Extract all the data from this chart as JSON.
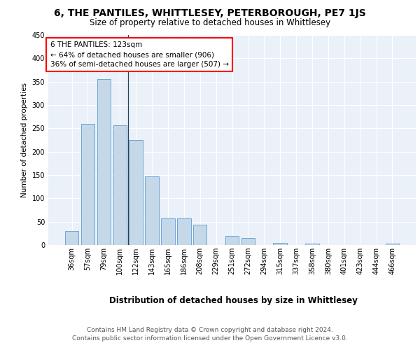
{
  "title1": "6, THE PANTILES, WHITTLESEY, PETERBOROUGH, PE7 1JS",
  "title2": "Size of property relative to detached houses in Whittlesey",
  "xlabel": "Distribution of detached houses by size in Whittlesey",
  "ylabel": "Number of detached properties",
  "categories": [
    "36sqm",
    "57sqm",
    "79sqm",
    "100sqm",
    "122sqm",
    "143sqm",
    "165sqm",
    "186sqm",
    "208sqm",
    "229sqm",
    "251sqm",
    "272sqm",
    "294sqm",
    "315sqm",
    "337sqm",
    "358sqm",
    "380sqm",
    "401sqm",
    "423sqm",
    "444sqm",
    "466sqm"
  ],
  "values": [
    30,
    260,
    355,
    257,
    225,
    147,
    57,
    57,
    43,
    0,
    20,
    15,
    0,
    5,
    0,
    3,
    0,
    0,
    0,
    0,
    3
  ],
  "bar_color": "#c5d8e8",
  "bar_edge_color": "#5b9bd5",
  "vline_color": "#2e4053",
  "annotation_box_text": "6 THE PANTILES: 123sqm\n← 64% of detached houses are smaller (906)\n36% of semi-detached houses are larger (507) →",
  "annotation_box_color": "white",
  "annotation_box_edge_color": "red",
  "ylim": [
    0,
    450
  ],
  "yticks": [
    0,
    50,
    100,
    150,
    200,
    250,
    300,
    350,
    400,
    450
  ],
  "bg_color": "#eaf1f8",
  "footer_text": "Contains HM Land Registry data © Crown copyright and database right 2024.\nContains public sector information licensed under the Open Government Licence v3.0.",
  "title1_fontsize": 10,
  "title2_fontsize": 8.5,
  "xlabel_fontsize": 8.5,
  "ylabel_fontsize": 7.5,
  "tick_fontsize": 7,
  "annotation_fontsize": 7.5,
  "footer_fontsize": 6.5
}
